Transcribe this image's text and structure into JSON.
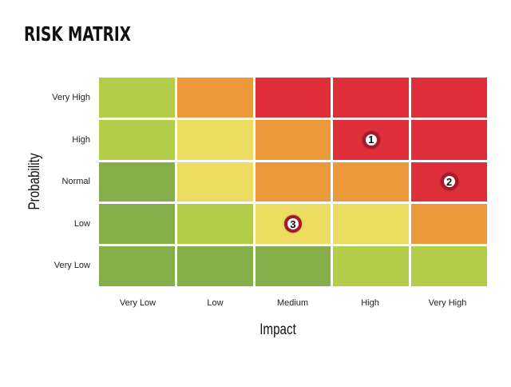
{
  "title": "RISK MATRIX",
  "colors": {
    "dark_green": "#86ae4a",
    "light_green": "#b3cd4b",
    "yellow": "#ecdc62",
    "orange": "#ec9a39",
    "red": "#de2f3b",
    "marker_ring": "#a5192a"
  },
  "chart_data": {
    "type": "heatmap",
    "title": "RISK MATRIX",
    "xlabel": "Impact",
    "ylabel": "Probability",
    "x_categories": [
      "Very Low",
      "Low",
      "Medium",
      "High",
      "Very High"
    ],
    "y_categories": [
      "Very High",
      "High",
      "Normal",
      "Low",
      "Very Low"
    ],
    "cells": [
      [
        "light_green",
        "orange",
        "red",
        "red",
        "red"
      ],
      [
        "light_green",
        "yellow",
        "orange",
        "red",
        "red"
      ],
      [
        "dark_green",
        "yellow",
        "orange",
        "orange",
        "red"
      ],
      [
        "dark_green",
        "light_green",
        "yellow",
        "yellow",
        "orange"
      ],
      [
        "dark_green",
        "dark_green",
        "dark_green",
        "light_green",
        "light_green"
      ]
    ],
    "markers": [
      {
        "label": "1",
        "impact": "High",
        "probability": "High"
      },
      {
        "label": "2",
        "impact": "Very High",
        "probability": "Normal"
      },
      {
        "label": "3",
        "impact": "Medium",
        "probability": "Low"
      }
    ]
  }
}
